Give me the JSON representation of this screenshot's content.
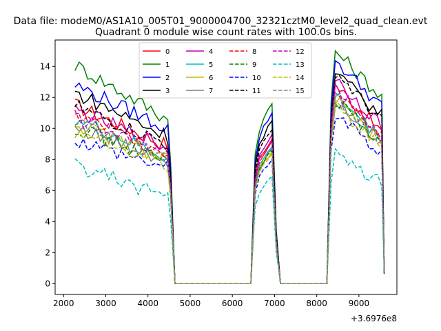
{
  "suptitle": "Data file: modeM0/AS1A10_005T01_9000004700_32321cztM0_level2_quad_clean.evt",
  "chart_data": {
    "type": "line",
    "title": "Quadrant 0 module wise count rates with 100.0s bins.",
    "xlabel": "",
    "ylabel": "",
    "x_offset_label": "+3.6976e8",
    "xlim": [
      1800,
      9900
    ],
    "ylim": [
      -0.7,
      15.7
    ],
    "xticks": [
      2000,
      3000,
      4000,
      5000,
      6000,
      7000,
      8000,
      9000
    ],
    "yticks": [
      0,
      2,
      4,
      6,
      8,
      10,
      12,
      14
    ],
    "grid": false,
    "legend_placement": "upper center",
    "segments": [
      {
        "x_start": 2270,
        "x_end": 4540,
        "trend": "decreasing"
      },
      {
        "x_start": 6540,
        "x_end": 7000,
        "trend": "increasing"
      },
      {
        "x_start": 8300,
        "x_end": 9600,
        "trend": "decreasing"
      }
    ],
    "series": [
      {
        "name": "0",
        "color": "#ff0000",
        "style": "solid",
        "start_level": 11.5,
        "end_level": 8.9,
        "peak_mid": 9.3,
        "peak_right": 12.8,
        "end_right": 9.8
      },
      {
        "name": "1",
        "color": "#008000",
        "style": "solid",
        "start_level": 14.1,
        "end_level": 10.6,
        "peak_mid": 11.6,
        "peak_right": 15.0,
        "end_right": 12.0
      },
      {
        "name": "2",
        "color": "#0000ff",
        "style": "solid",
        "start_level": 12.8,
        "end_level": 10.0,
        "peak_mid": 11.0,
        "peak_right": 14.4,
        "end_right": 11.4
      },
      {
        "name": "3",
        "color": "#000000",
        "style": "solid",
        "start_level": 12.3,
        "end_level": 9.5,
        "peak_mid": 10.5,
        "peak_right": 13.6,
        "end_right": 10.8
      },
      {
        "name": "4",
        "color": "#bf00bf",
        "style": "solid",
        "start_level": 11.2,
        "end_level": 8.7,
        "peak_mid": 9.6,
        "peak_right": 13.2,
        "end_right": 10.2
      },
      {
        "name": "5",
        "color": "#00bfbf",
        "style": "solid",
        "start_level": 10.6,
        "end_level": 8.1,
        "peak_mid": 8.8,
        "peak_right": 12.2,
        "end_right": 9.3
      },
      {
        "name": "6",
        "color": "#bfbf00",
        "style": "solid",
        "start_level": 10.3,
        "end_level": 8.0,
        "peak_mid": 8.5,
        "peak_right": 11.8,
        "end_right": 9.0
      },
      {
        "name": "7",
        "color": "#808080",
        "style": "solid",
        "start_level": 10.1,
        "end_level": 7.9,
        "peak_mid": 8.7,
        "peak_right": 11.9,
        "end_right": 9.1
      },
      {
        "name": "8",
        "color": "#ff0000",
        "style": "dashed",
        "start_level": 10.9,
        "end_level": 8.4,
        "peak_mid": 9.2,
        "peak_right": 12.6,
        "end_right": 9.7
      },
      {
        "name": "9",
        "color": "#008000",
        "style": "dashed",
        "start_level": 10.1,
        "end_level": 7.8,
        "peak_mid": 8.6,
        "peak_right": 11.8,
        "end_right": 9.0
      },
      {
        "name": "10",
        "color": "#0000ff",
        "style": "dashed",
        "start_level": 9.3,
        "end_level": 7.5,
        "peak_mid": 8.0,
        "peak_right": 11.0,
        "end_right": 8.3
      },
      {
        "name": "11",
        "color": "#000000",
        "style": "dashed",
        "start_level": 11.4,
        "end_level": 9.0,
        "peak_mid": 9.9,
        "peak_right": 13.7,
        "end_right": 10.4
      },
      {
        "name": "12",
        "color": "#bf00bf",
        "style": "dashed",
        "start_level": 10.7,
        "end_level": 8.4,
        "peak_mid": 9.2,
        "peak_right": 12.5,
        "end_right": 9.6
      },
      {
        "name": "13",
        "color": "#00bfbf",
        "style": "dashed",
        "start_level": 7.6,
        "end_level": 5.6,
        "peak_mid": 6.9,
        "peak_right": 8.3,
        "end_right": 6.5
      },
      {
        "name": "14",
        "color": "#bfbf00",
        "style": "dashed",
        "start_level": 9.7,
        "end_level": 7.7,
        "peak_mid": 8.4,
        "peak_right": 11.5,
        "end_right": 8.8
      },
      {
        "name": "15",
        "color": "#808080",
        "style": "dashed",
        "start_level": 10.3,
        "end_level": 8.0,
        "peak_mid": 8.7,
        "peak_right": 12.0,
        "end_right": 9.2
      }
    ]
  }
}
